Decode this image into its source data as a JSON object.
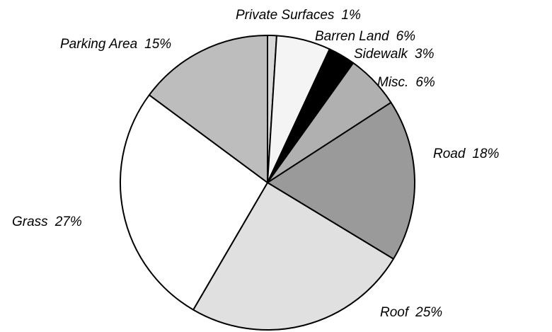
{
  "chart_data": {
    "type": "pie",
    "categories": [
      "Private Surfaces",
      "Barren Land",
      "Sidewalk",
      "Misc.",
      "Road",
      "Roof",
      "Grass",
      "Parking Area"
    ],
    "values": [
      1,
      6,
      3,
      6,
      18,
      25,
      27,
      15
    ],
    "value_labels": [
      "1%",
      "6%",
      "3%",
      "6%",
      "18%",
      "25%",
      "27%",
      "15%"
    ],
    "colors": [
      "#d8d8d8",
      "#f4f4f4",
      "#000000",
      "#b0b0b0",
      "#9a9a9a",
      "#e0e0e0",
      "#ffffff",
      "#bdbdbd"
    ]
  }
}
